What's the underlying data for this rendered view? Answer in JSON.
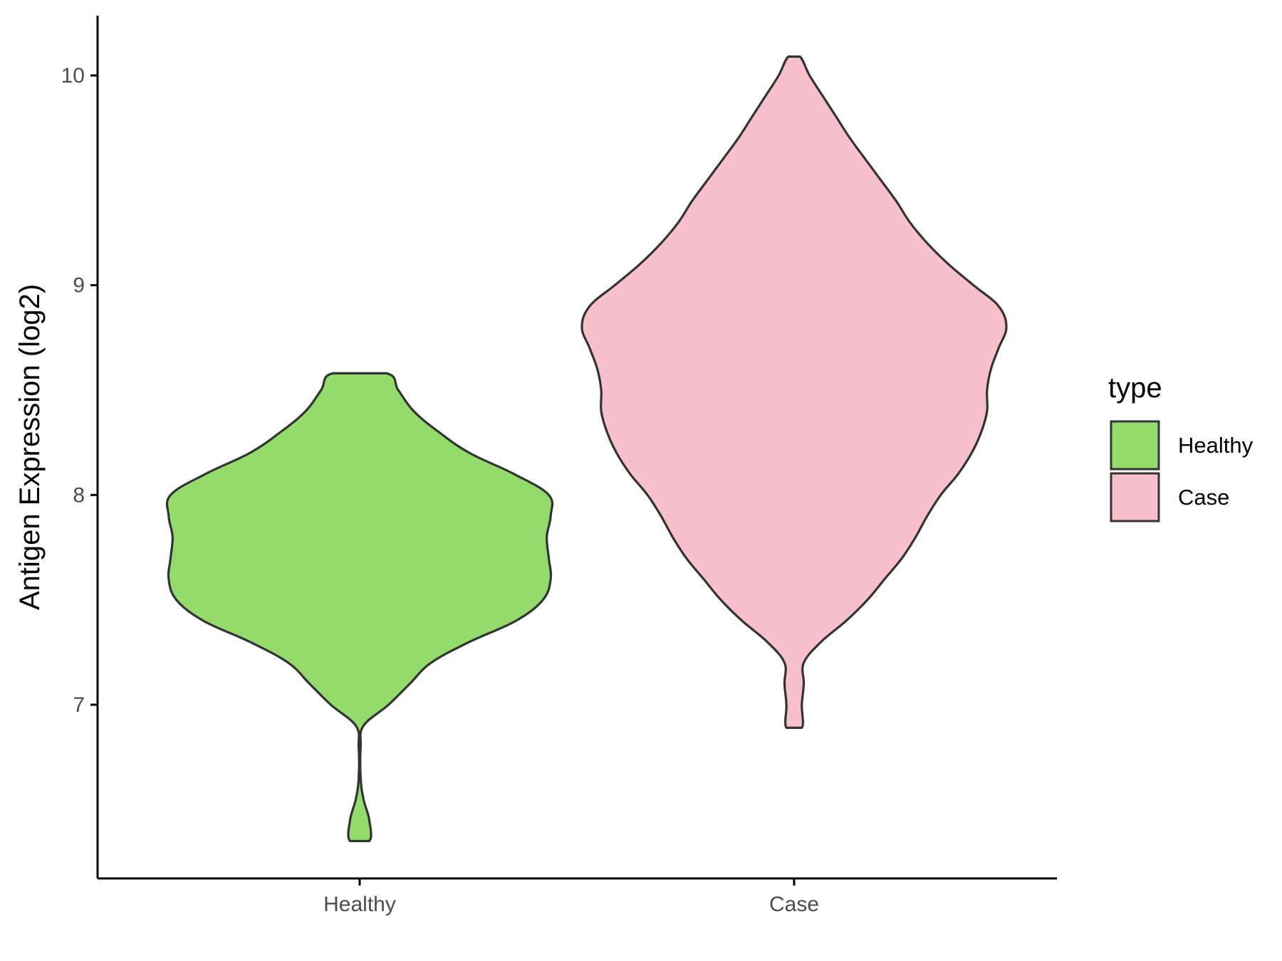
{
  "chart_data": {
    "type": "violin",
    "title": "",
    "xlabel": "",
    "ylabel": "Antigen Expression (log2)",
    "ylim": [
      6.18,
      10.3
    ],
    "y_ticks": [
      "7",
      "8",
      "9",
      "10"
    ],
    "categories": [
      "Healthy",
      "Case"
    ],
    "legend": {
      "title": "type",
      "position": "right",
      "entries": [
        "Healthy",
        "Case"
      ]
    },
    "grid": false,
    "series": [
      {
        "name": "Healthy",
        "color": "#93DC6B",
        "y_min": 6.35,
        "y_max": 8.58,
        "density_profile": [
          [
            6.35,
            0.05
          ],
          [
            6.45,
            0.05
          ],
          [
            6.55,
            0.02
          ],
          [
            6.65,
            0.005
          ],
          [
            6.8,
            0.005
          ],
          [
            6.9,
            0.02
          ],
          [
            7.0,
            0.15
          ],
          [
            7.1,
            0.26
          ],
          [
            7.2,
            0.37
          ],
          [
            7.3,
            0.57
          ],
          [
            7.4,
            0.81
          ],
          [
            7.5,
            0.95
          ],
          [
            7.6,
            0.99
          ],
          [
            7.7,
            0.98
          ],
          [
            7.8,
            0.97
          ],
          [
            7.9,
            0.99
          ],
          [
            8.0,
            0.98
          ],
          [
            8.1,
            0.8
          ],
          [
            8.2,
            0.57
          ],
          [
            8.3,
            0.41
          ],
          [
            8.4,
            0.28
          ],
          [
            8.5,
            0.2
          ],
          [
            8.58,
            0.14
          ]
        ]
      },
      {
        "name": "Case",
        "color": "#F8C0CB",
        "y_min": 6.89,
        "y_max": 10.09,
        "density_profile": [
          [
            6.89,
            0.04
          ],
          [
            7.0,
            0.04
          ],
          [
            7.1,
            0.05
          ],
          [
            7.2,
            0.05
          ],
          [
            7.3,
            0.14
          ],
          [
            7.4,
            0.27
          ],
          [
            7.5,
            0.38
          ],
          [
            7.6,
            0.47
          ],
          [
            7.7,
            0.56
          ],
          [
            7.8,
            0.63
          ],
          [
            7.9,
            0.69
          ],
          [
            8.0,
            0.76
          ],
          [
            8.1,
            0.85
          ],
          [
            8.2,
            0.92
          ],
          [
            8.3,
            0.97
          ],
          [
            8.4,
            1.0
          ],
          [
            8.5,
            1.0
          ],
          [
            8.6,
            1.02
          ],
          [
            8.7,
            1.06
          ],
          [
            8.8,
            1.1
          ],
          [
            8.9,
            1.06
          ],
          [
            9.0,
            0.93
          ],
          [
            9.1,
            0.8
          ],
          [
            9.2,
            0.69
          ],
          [
            9.3,
            0.6
          ],
          [
            9.4,
            0.53
          ],
          [
            9.5,
            0.45
          ],
          [
            9.6,
            0.37
          ],
          [
            9.7,
            0.29
          ],
          [
            9.8,
            0.22
          ],
          [
            9.9,
            0.15
          ],
          [
            10.0,
            0.08
          ],
          [
            10.09,
            0.03
          ]
        ]
      }
    ]
  }
}
